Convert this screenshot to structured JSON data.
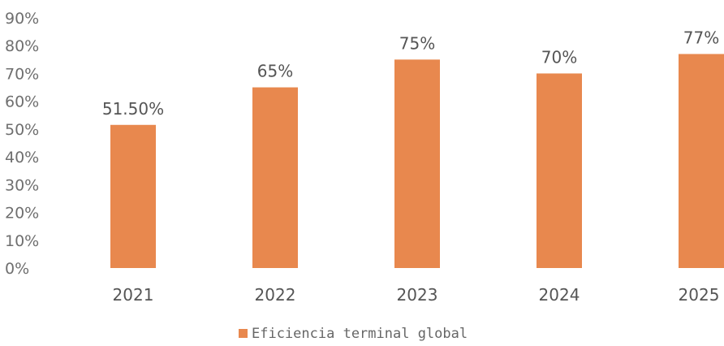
{
  "chart_data": {
    "type": "bar",
    "categories": [
      "2021",
      "2022",
      "2023",
      "2024",
      "2025"
    ],
    "series": [
      {
        "name": "Eficiencia terminal global",
        "values": [
          51.5,
          65,
          75,
          70,
          77
        ],
        "data_labels": [
          "51.50%",
          "65%",
          "75%",
          "70%",
          "77%"
        ]
      }
    ],
    "y_ticks": [
      "0%",
      "10%",
      "20%",
      "30%",
      "40%",
      "50%",
      "60%",
      "70%",
      "80%",
      "90%"
    ],
    "ylim": [
      0,
      90
    ],
    "grid": false,
    "legend_position": "bottom",
    "bar_color": "#E8884E"
  }
}
